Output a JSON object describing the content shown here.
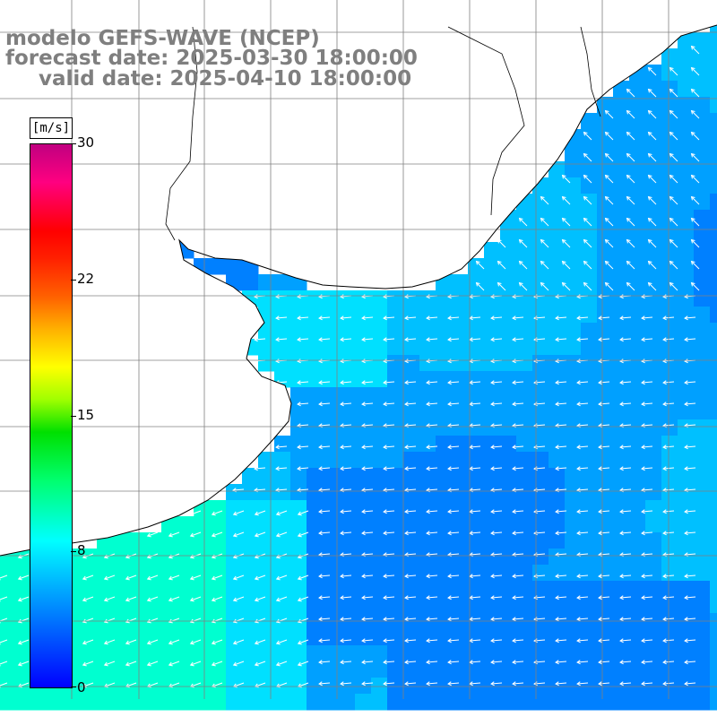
{
  "header": {
    "model": "modelo GEFS-WAVE (NCEP)",
    "forecast": "forecast date: 2025-03-30 18:00:00",
    "valid": "valid date: 2025-04-10 18:00:00"
  },
  "colorbar": {
    "unit": "[m/s]",
    "min": 0,
    "max": 30,
    "ticks": [
      "30",
      "22",
      "15",
      "8",
      "0"
    ],
    "tick_values": [
      30,
      22,
      15,
      8,
      0
    ],
    "colors": [
      "#0000ff",
      "#00a0ff",
      "#00ffff",
      "#00ff70",
      "#00e000",
      "#a0ff00",
      "#ffff00",
      "#ffb000",
      "#ff6000",
      "#ff2000",
      "#ff0000",
      "#ff0080",
      "#c00080"
    ]
  },
  "map": {
    "field": "wind speed with wind direction arrows",
    "land_color": "#ffffff",
    "grid_color": "#808080",
    "arrow_color": "#ffffff",
    "coast_color": "#000000",
    "ocean_palette": [
      "#0060ff",
      "#0080ff",
      "#00a0ff",
      "#00c0ff",
      "#00e0ff",
      "#00ffd0"
    ]
  }
}
